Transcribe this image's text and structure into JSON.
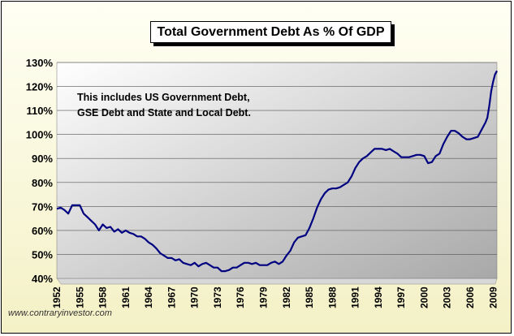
{
  "chart_data": {
    "type": "line",
    "title": "Total Government Debt As % Of GDP",
    "annotation": [
      "This includes US Government Debt,",
      "GSE Debt and State and Local Debt."
    ],
    "ylim": [
      40,
      130
    ],
    "y_ticks": [
      "40%",
      "50%",
      "60%",
      "70%",
      "80%",
      "90%",
      "100%",
      "110%",
      "120%",
      "130%"
    ],
    "xlim": [
      1952,
      2009.5
    ],
    "x_ticks": [
      "1952",
      "1955",
      "1958",
      "1961",
      "1964",
      "1967",
      "1970",
      "1973",
      "1976",
      "1979",
      "1982",
      "1985",
      "1988",
      "1991",
      "1994",
      "1997",
      "2000",
      "2003",
      "2006",
      "2009"
    ],
    "grid": true,
    "line_color": "#000080",
    "series": [
      {
        "name": "",
        "x": [
          1952.0,
          1952.5,
          1953.0,
          1953.5,
          1954.0,
          1954.5,
          1955.0,
          1955.5,
          1956.0,
          1956.5,
          1957.0,
          1957.5,
          1958.0,
          1958.5,
          1959.0,
          1959.5,
          1960.0,
          1960.5,
          1961.0,
          1961.5,
          1962.0,
          1962.5,
          1963.0,
          1963.5,
          1964.0,
          1964.5,
          1965.0,
          1965.5,
          1966.0,
          1966.5,
          1967.0,
          1967.5,
          1968.0,
          1968.5,
          1969.0,
          1969.5,
          1970.0,
          1970.5,
          1971.0,
          1971.5,
          1972.0,
          1972.5,
          1973.0,
          1973.5,
          1974.0,
          1974.5,
          1975.0,
          1975.5,
          1976.0,
          1976.5,
          1977.0,
          1977.5,
          1978.0,
          1978.5,
          1979.0,
          1979.5,
          1980.0,
          1980.5,
          1981.0,
          1981.5,
          1982.0,
          1982.5,
          1983.0,
          1983.5,
          1984.0,
          1984.5,
          1985.0,
          1985.5,
          1986.0,
          1986.5,
          1987.0,
          1987.5,
          1988.0,
          1988.5,
          1989.0,
          1989.5,
          1990.0,
          1990.5,
          1991.0,
          1991.5,
          1992.0,
          1992.5,
          1993.0,
          1993.5,
          1994.0,
          1994.5,
          1995.0,
          1995.5,
          1996.0,
          1996.5,
          1997.0,
          1997.5,
          1998.0,
          1998.5,
          1999.0,
          1999.5,
          2000.0,
          2000.5,
          2001.0,
          2001.5,
          2002.0,
          2002.5,
          2003.0,
          2003.5,
          2004.0,
          2004.5,
          2005.0,
          2005.5,
          2006.0,
          2006.5,
          2007.0,
          2007.5,
          2008.0,
          2008.25,
          2008.5,
          2008.75,
          2009.0,
          2009.25,
          2009.5
        ],
        "y": [
          69,
          69.5,
          68.5,
          67,
          70.5,
          70.5,
          70.5,
          67,
          65.5,
          64,
          62.5,
          60,
          62.5,
          61,
          61.5,
          59.5,
          60.5,
          59,
          60,
          59,
          58.5,
          57.5,
          57.5,
          56.5,
          55,
          54,
          52.5,
          50.5,
          49.5,
          48.5,
          48.5,
          47.5,
          48,
          46.5,
          46,
          45.5,
          46.5,
          45,
          46,
          46.5,
          45.5,
          44.5,
          44.5,
          43,
          43,
          43.5,
          44.5,
          44.5,
          45.5,
          46.5,
          46.5,
          46,
          46.5,
          45.5,
          45.5,
          45.5,
          46.5,
          47,
          46,
          47,
          49.5,
          51.5,
          55,
          57,
          57.5,
          58,
          61,
          65,
          69.5,
          73,
          75.5,
          77,
          77.5,
          77.5,
          78,
          79,
          80,
          82.5,
          86,
          88.5,
          90,
          91,
          92.5,
          94,
          94,
          94,
          93.5,
          94,
          93,
          92,
          90.5,
          90.5,
          90.5,
          91,
          91.5,
          91.5,
          91,
          88,
          88.5,
          91,
          92,
          96,
          99,
          101.5,
          101.5,
          100.5,
          99,
          98,
          98,
          98.5,
          99,
          102,
          105,
          107,
          112,
          118,
          122,
          125,
          126.5
        ]
      }
    ]
  },
  "credit": "www.contraryinvestor.com",
  "colors": {
    "plot_bg_light": "#ffffff",
    "plot_bg_dark": "#aaaaaa",
    "floor": "#d8d8d8",
    "line": "#000080",
    "frame_bg": "#fdfbe4"
  }
}
